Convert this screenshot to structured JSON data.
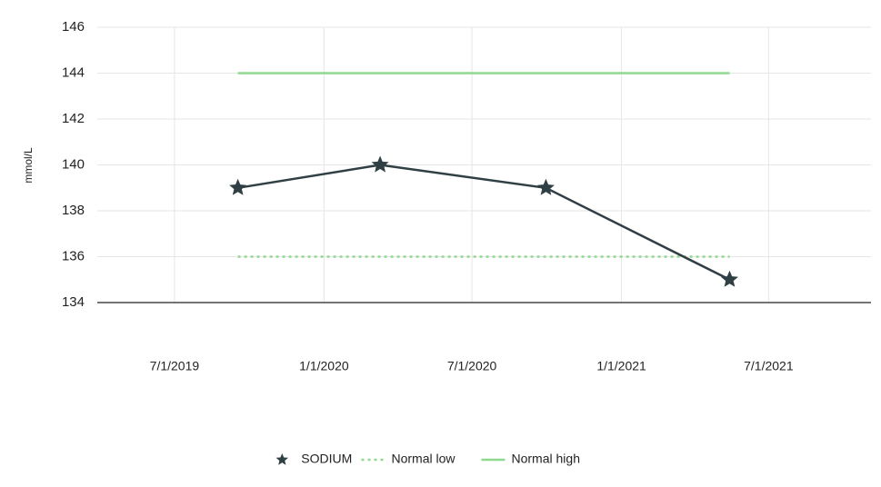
{
  "chart_data": {
    "type": "line",
    "y_label": "mmol/L",
    "x": [
      "9/17/2019",
      "3/10/2020",
      "9/30/2020",
      "5/14/2021"
    ],
    "series": [
      {
        "name": "SODIUM",
        "color": "#2f3f44",
        "style": "solid",
        "marker": "star",
        "values": [
          139,
          140,
          139,
          135
        ]
      },
      {
        "name": "Normal low",
        "color": "#8fd98f",
        "style": "dotted",
        "marker": "none",
        "values": [
          136,
          136,
          136,
          136
        ]
      },
      {
        "name": "Normal high",
        "color": "#8fd98f",
        "style": "solid",
        "marker": "none",
        "values": [
          144,
          144,
          144,
          144
        ]
      }
    ],
    "xlim": [
      "3/28/2019",
      "11/4/2021"
    ],
    "xticks": [
      "7/1/2019",
      "1/1/2020",
      "7/1/2020",
      "1/1/2021",
      "7/1/2021"
    ],
    "ylim": [
      134,
      146
    ],
    "yticks": [
      134,
      136,
      138,
      140,
      142,
      144,
      146
    ],
    "grid": true,
    "legend": "bottom"
  }
}
